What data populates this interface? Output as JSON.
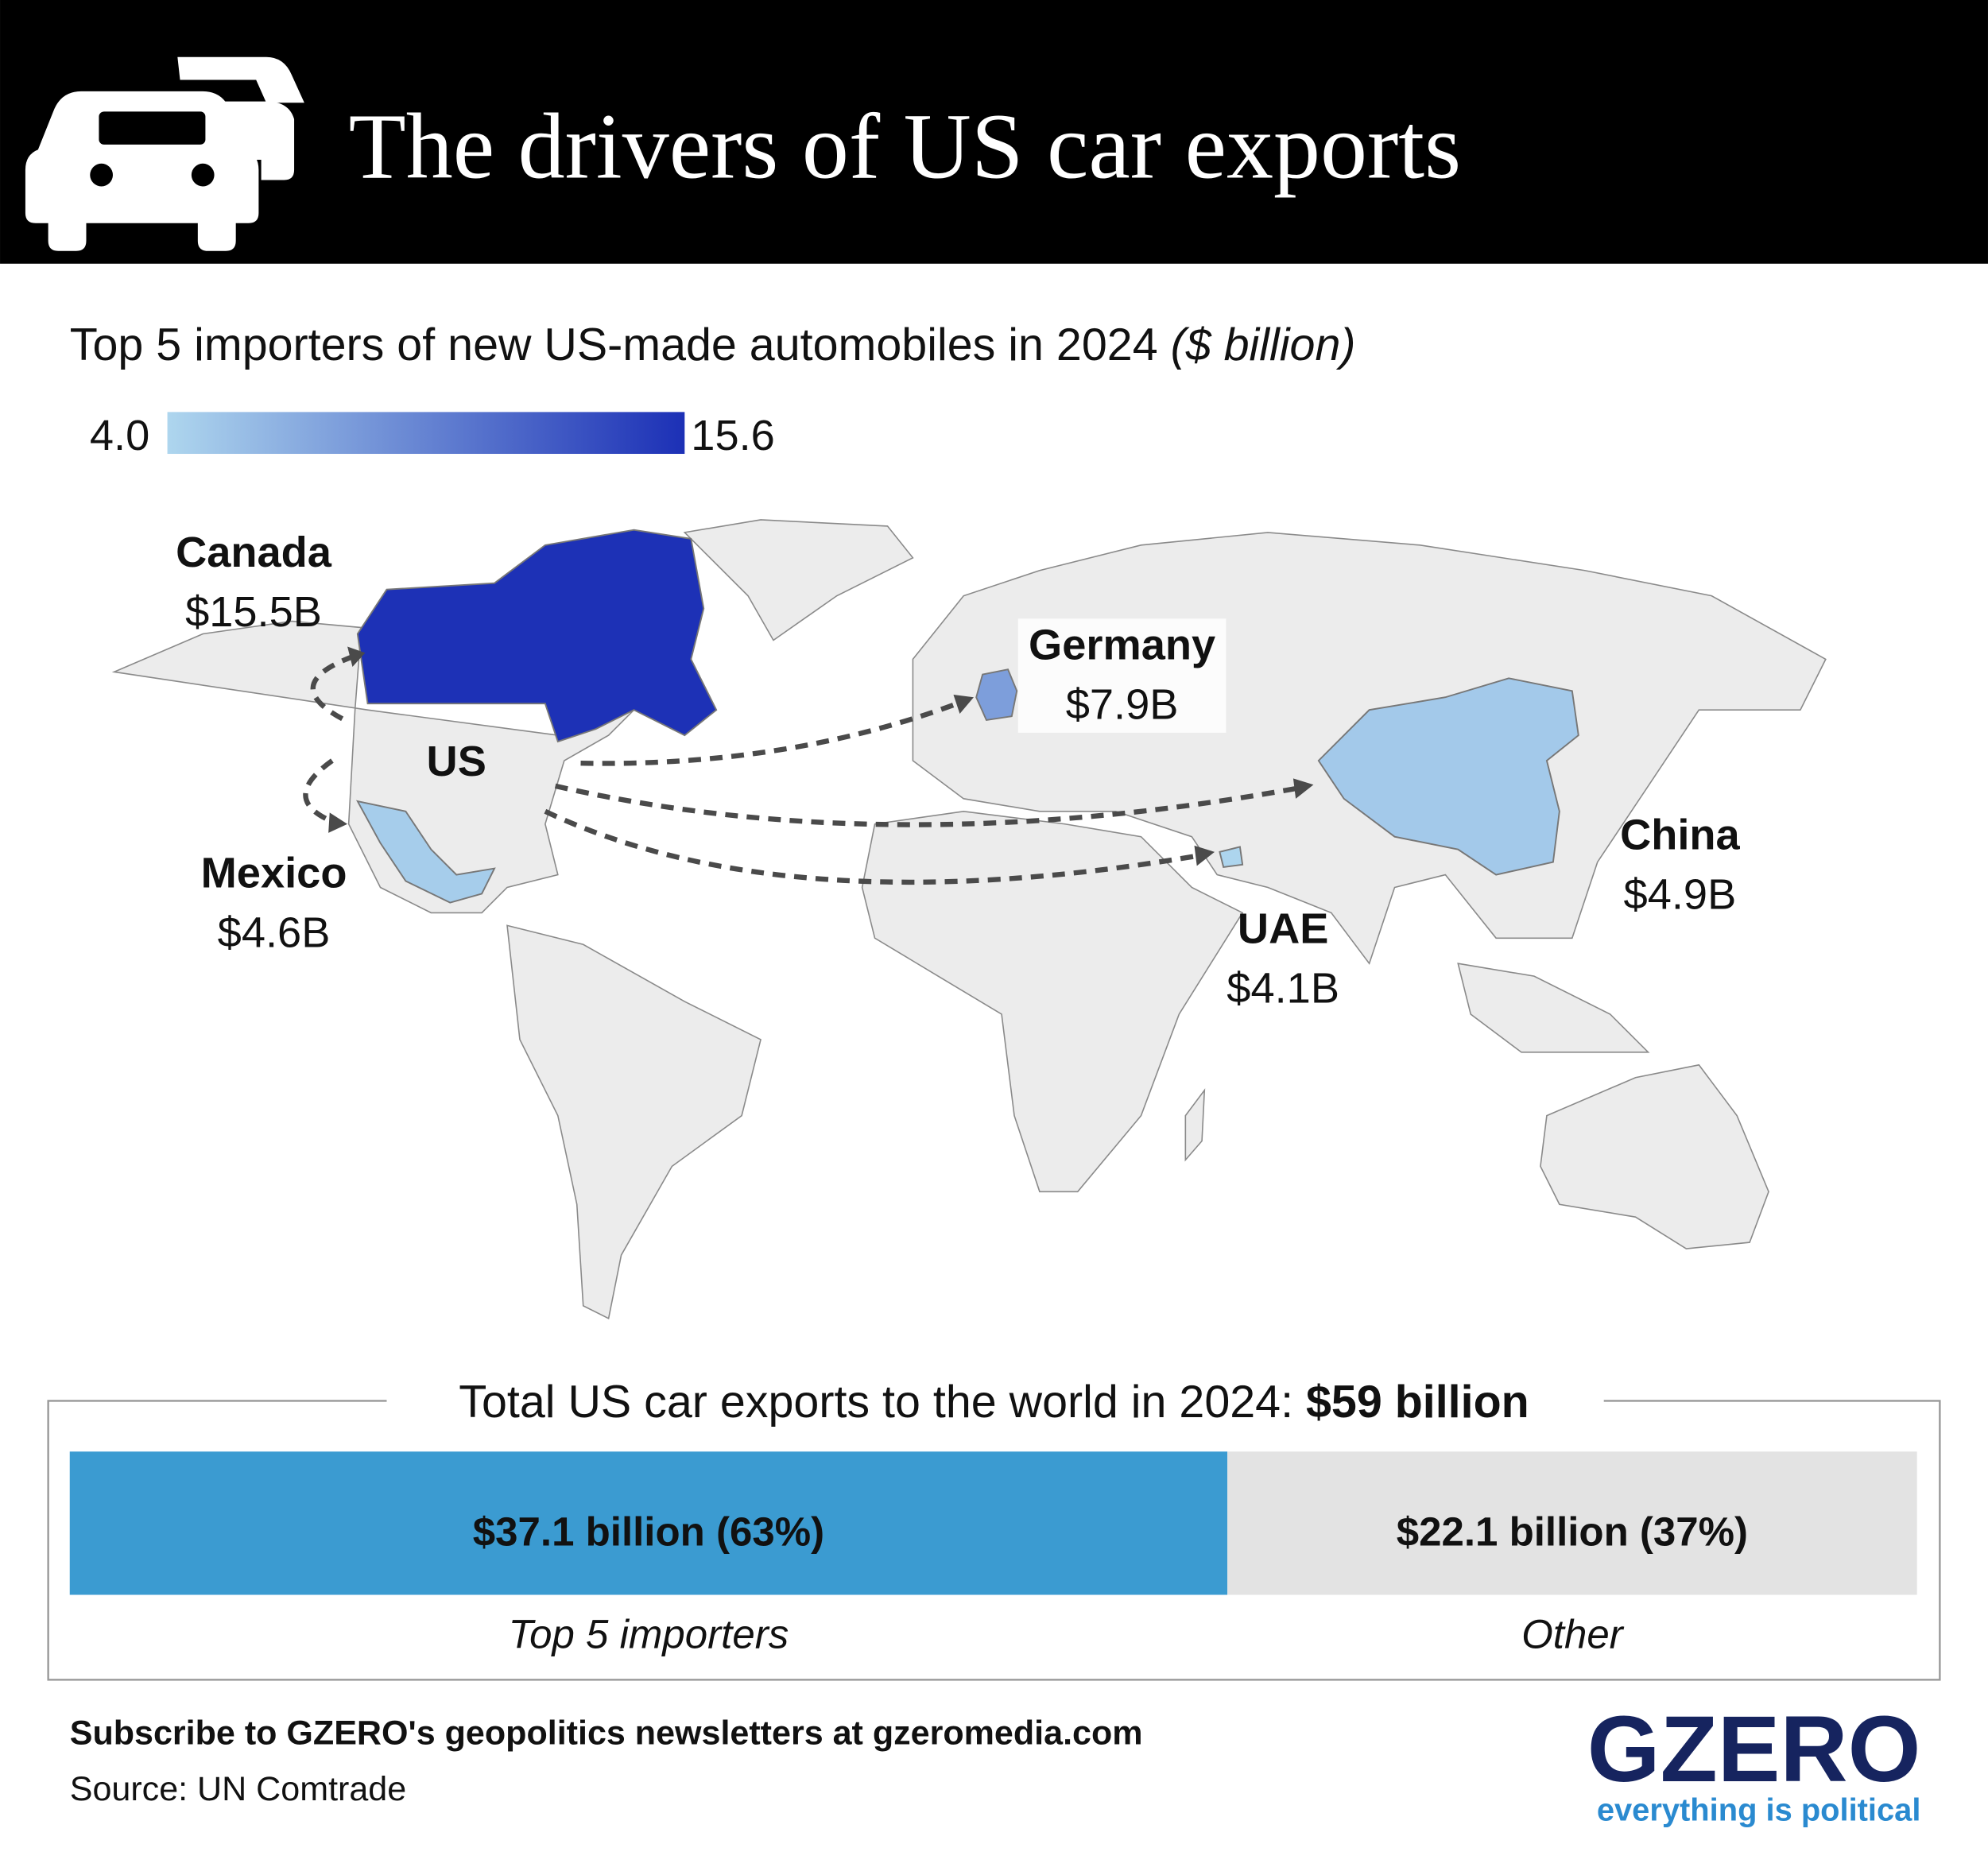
{
  "header": {
    "title": "The drivers of US car exports"
  },
  "subtitle": {
    "text": "Top 5 importers of new US-made automobiles in 2024",
    "unit": "($ billion)"
  },
  "map": {
    "scale": {
      "min": {
        "value": 4.0,
        "label": "4.0"
      },
      "max": {
        "value": 15.6,
        "label": "15.6"
      },
      "colors": [
        "#aed6ee",
        "#1c30b6"
      ]
    },
    "origin": {
      "label": "US"
    },
    "countries": [
      {
        "name": "Canada",
        "value": 15.5,
        "value_label": "$15.5B"
      },
      {
        "name": "Germany",
        "value": 7.9,
        "value_label": "$7.9B"
      },
      {
        "name": "Mexico",
        "value": 4.6,
        "value_label": "$4.6B"
      },
      {
        "name": "UAE",
        "value": 4.1,
        "value_label": "$4.1B"
      },
      {
        "name": "China",
        "value": 4.9,
        "value_label": "$4.9B"
      }
    ]
  },
  "total": {
    "title": "Total US car exports to the world in 2024:",
    "value_label": "$59 billion",
    "segments": [
      {
        "name": "Top 5 importers",
        "value": 37.1,
        "value_label": "$37.1 billion (63%)",
        "color": "#3b9bd1"
      },
      {
        "name": "Other",
        "value": 22.1,
        "value_label": "$22.1 billion (37%)",
        "color": "#e3e3e3"
      }
    ]
  },
  "footer": {
    "subscribe": "Subscribe to GZERO's geopolitics newsletters at gzeromedia.com",
    "source": "Source: UN Comtrade"
  },
  "logo": {
    "name": "GZERO",
    "tagline": "everything is political"
  }
}
